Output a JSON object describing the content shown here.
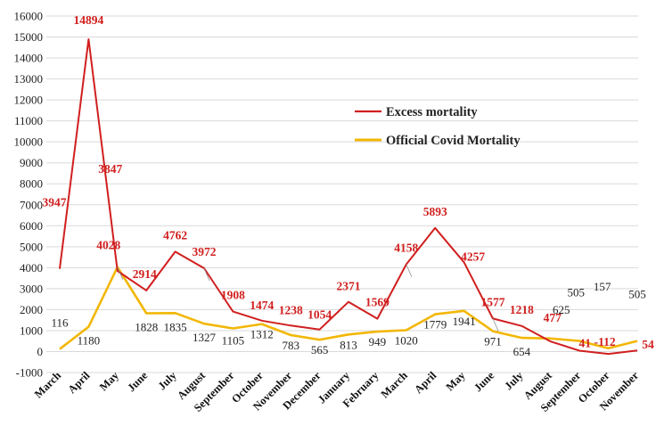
{
  "chart_data": {
    "type": "line",
    "categories": [
      "March",
      "April",
      "May",
      "June",
      "July",
      "August",
      "September",
      "October",
      "November",
      "December",
      "January",
      "February",
      "March",
      "April",
      "May",
      "June",
      "July",
      "August",
      "September",
      "October",
      "November"
    ],
    "series": [
      {
        "name": "Excess mortality",
        "color": "#d11f1f",
        "values": [
          3947,
          14894,
          3847,
          2914,
          4762,
          3972,
          1908,
          1474,
          1238,
          1054,
          2371,
          1569,
          4158,
          5893,
          4257,
          1577,
          1218,
          477,
          41,
          -112,
          54
        ]
      },
      {
        "name": "Official Covid Mortality",
        "color": "#f2b705",
        "values": [
          116,
          1180,
          4028,
          1828,
          1835,
          1327,
          1105,
          1312,
          783,
          565,
          813,
          949,
          1020,
          1779,
          1941,
          971,
          654,
          625,
          505,
          157,
          505
        ]
      }
    ],
    "ylim": [
      -1000,
      16000
    ],
    "yticks": [
      -1000,
      0,
      1000,
      2000,
      3000,
      4000,
      5000,
      6000,
      7000,
      8000,
      9000,
      10000,
      11000,
      12000,
      13000,
      14000,
      15000,
      16000
    ],
    "grid": true,
    "legend": "center-right",
    "title": "",
    "xlabel": "",
    "ylabel": ""
  }
}
